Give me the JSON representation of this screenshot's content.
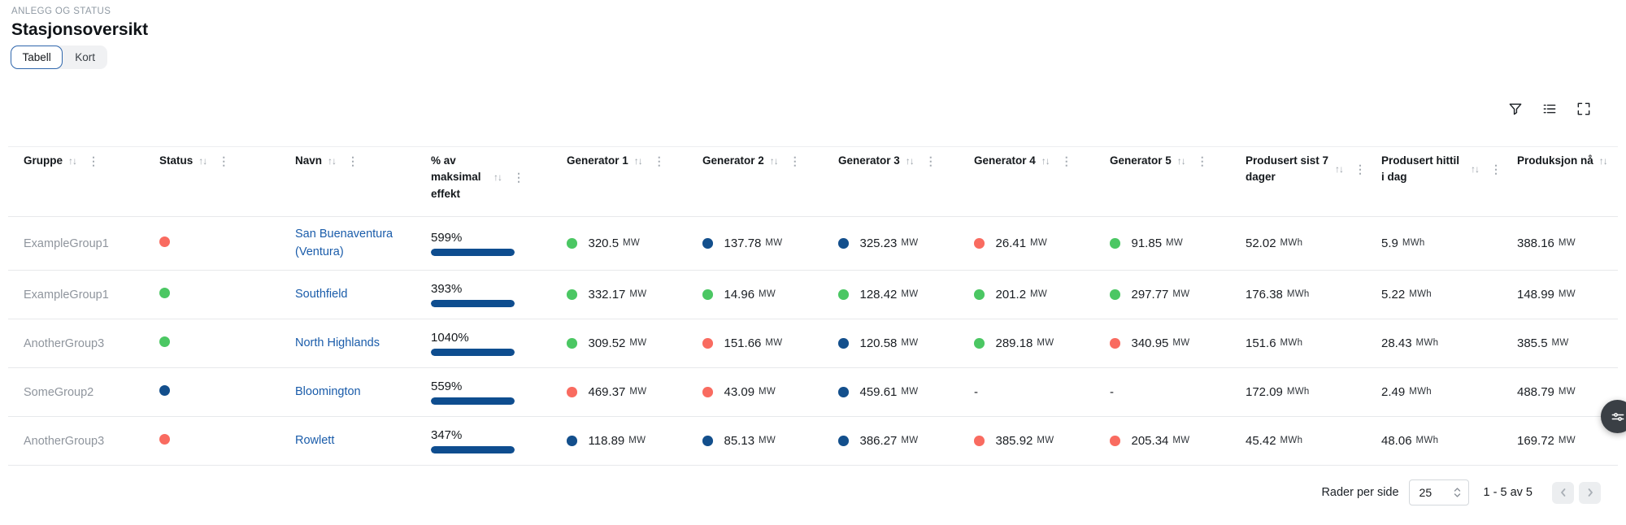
{
  "header": {
    "eyebrow": "ANLEGG OG STATUS",
    "title": "Stasjonsoversikt",
    "toggle": {
      "tabell": "Tabell",
      "kort": "Kort"
    }
  },
  "colors": {
    "red": "#f96b60",
    "green": "#4bc763",
    "blue": "#134f8c",
    "link": "#1a5caa",
    "bar": "#0e4d8f"
  },
  "table": {
    "columns": [
      {
        "label": "Gruppe",
        "sort": true,
        "menu": true
      },
      {
        "label": "Status",
        "sort": true,
        "menu": true
      },
      {
        "label": "Navn",
        "sort": true,
        "menu": true
      },
      {
        "label": "% av maksimal effekt",
        "sort": true,
        "menu": true,
        "wrap": 70
      },
      {
        "label": "Generator 1",
        "sort": true,
        "menu": true
      },
      {
        "label": "Generator 2",
        "sort": true,
        "menu": true
      },
      {
        "label": "Generator 3",
        "sort": true,
        "menu": true
      },
      {
        "label": "Generator 4",
        "sort": true,
        "menu": true
      },
      {
        "label": "Generator 5",
        "sort": true,
        "menu": true
      },
      {
        "label": "Produsert sist 7 dager",
        "sort": true,
        "menu": true,
        "wrap": 108
      },
      {
        "label": "Produsert hittil i dag",
        "sort": true,
        "menu": true,
        "wrap": 122
      },
      {
        "label": "Produksjon nå",
        "sort": true,
        "menu": false
      }
    ],
    "rows": [
      {
        "gruppe": "ExampleGroup1",
        "status": "red",
        "navn": "San Buenaventura (Ventura)",
        "pct": "599%",
        "bar_pct": 100,
        "generators": [
          {
            "dot": "green",
            "value": "320.5",
            "unit": "MW"
          },
          {
            "dot": "blue",
            "value": "137.78",
            "unit": "MW"
          },
          {
            "dot": "blue",
            "value": "325.23",
            "unit": "MW"
          },
          {
            "dot": "red",
            "value": "26.41",
            "unit": "MW"
          },
          {
            "dot": "green",
            "value": "91.85",
            "unit": "MW"
          }
        ],
        "produsert_sist_7_dager": {
          "value": "52.02",
          "unit": "MWh"
        },
        "produsert_hittil_i_dag": {
          "value": "5.9",
          "unit": "MWh"
        },
        "produksjon_na": {
          "value": "388.16",
          "unit": "MW"
        }
      },
      {
        "gruppe": "ExampleGroup1",
        "status": "green",
        "navn": "Southfield",
        "pct": "393%",
        "bar_pct": 100,
        "generators": [
          {
            "dot": "green",
            "value": "332.17",
            "unit": "MW"
          },
          {
            "dot": "green",
            "value": "14.96",
            "unit": "MW"
          },
          {
            "dot": "green",
            "value": "128.42",
            "unit": "MW"
          },
          {
            "dot": "green",
            "value": "201.2",
            "unit": "MW"
          },
          {
            "dot": "green",
            "value": "297.77",
            "unit": "MW"
          }
        ],
        "produsert_sist_7_dager": {
          "value": "176.38",
          "unit": "MWh"
        },
        "produsert_hittil_i_dag": {
          "value": "5.22",
          "unit": "MWh"
        },
        "produksjon_na": {
          "value": "148.99",
          "unit": "MW"
        }
      },
      {
        "gruppe": "AnotherGroup3",
        "status": "green",
        "navn": "North Highlands",
        "pct": "1040%",
        "bar_pct": 100,
        "generators": [
          {
            "dot": "green",
            "value": "309.52",
            "unit": "MW"
          },
          {
            "dot": "red",
            "value": "151.66",
            "unit": "MW"
          },
          {
            "dot": "blue",
            "value": "120.58",
            "unit": "MW"
          },
          {
            "dot": "green",
            "value": "289.18",
            "unit": "MW"
          },
          {
            "dot": "red",
            "value": "340.95",
            "unit": "MW"
          }
        ],
        "produsert_sist_7_dager": {
          "value": "151.6",
          "unit": "MWh"
        },
        "produsert_hittil_i_dag": {
          "value": "28.43",
          "unit": "MWh"
        },
        "produksjon_na": {
          "value": "385.5",
          "unit": "MW"
        }
      },
      {
        "gruppe": "SomeGroup2",
        "status": "blue",
        "navn": "Bloomington",
        "pct": "559%",
        "bar_pct": 100,
        "generators": [
          {
            "dot": "red",
            "value": "469.37",
            "unit": "MW"
          },
          {
            "dot": "red",
            "value": "43.09",
            "unit": "MW"
          },
          {
            "dot": "blue",
            "value": "459.61",
            "unit": "MW"
          },
          null,
          null
        ],
        "produsert_sist_7_dager": {
          "value": "172.09",
          "unit": "MWh"
        },
        "produsert_hittil_i_dag": {
          "value": "2.49",
          "unit": "MWh"
        },
        "produksjon_na": {
          "value": "488.79",
          "unit": "MW"
        }
      },
      {
        "gruppe": "AnotherGroup3",
        "status": "red",
        "navn": "Rowlett",
        "pct": "347%",
        "bar_pct": 100,
        "generators": [
          {
            "dot": "blue",
            "value": "118.89",
            "unit": "MW"
          },
          {
            "dot": "blue",
            "value": "85.13",
            "unit": "MW"
          },
          {
            "dot": "blue",
            "value": "386.27",
            "unit": "MW"
          },
          {
            "dot": "red",
            "value": "385.92",
            "unit": "MW"
          },
          {
            "dot": "red",
            "value": "205.34",
            "unit": "MW"
          }
        ],
        "produsert_sist_7_dager": {
          "value": "45.42",
          "unit": "MWh"
        },
        "produsert_hittil_i_dag": {
          "value": "48.06",
          "unit": "MWh"
        },
        "produksjon_na": {
          "value": "169.72",
          "unit": "MW"
        }
      }
    ]
  },
  "pagination": {
    "rows_per_page_label": "Rader per side",
    "rows_per_page_value": "25",
    "range": "1 - 5 av 5"
  }
}
